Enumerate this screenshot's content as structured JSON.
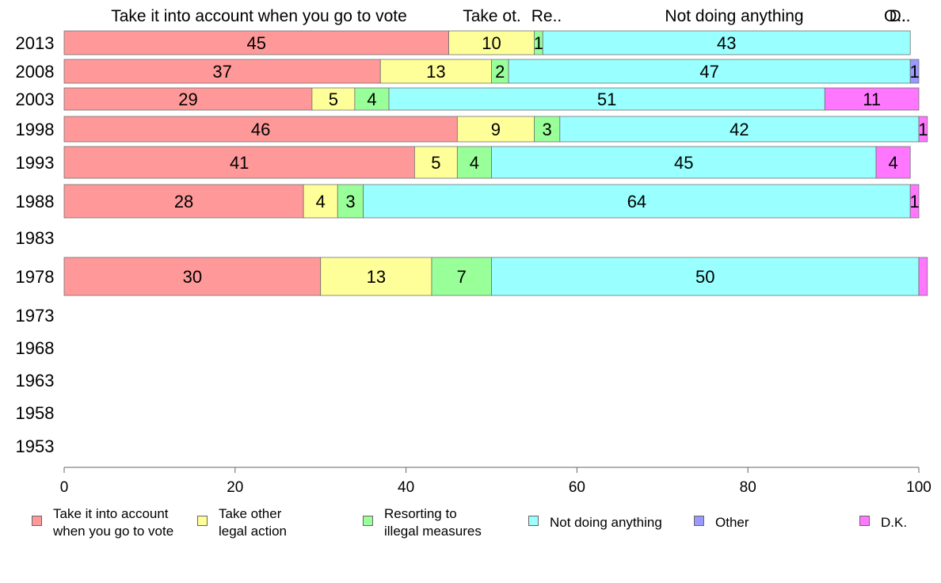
{
  "chart_data": {
    "type": "bar",
    "orientation": "horizontal",
    "stacked": true,
    "title": "",
    "xlabel": "",
    "ylabel": "",
    "xlim": [
      0,
      100
    ],
    "x_ticks": [
      "0",
      "20",
      "40",
      "60",
      "80",
      "100"
    ],
    "categories": [
      "2013",
      "2008",
      "2003",
      "1998",
      "1993",
      "1988",
      "1983",
      "1978",
      "1973",
      "1968",
      "1963",
      "1958",
      "1953"
    ],
    "header_labels": [
      "Take it into account when you go to vote",
      "Take ot.",
      "Re..",
      "Not doing anything",
      "O..",
      "D.."
    ],
    "series": [
      {
        "name": "Take it into account when you go to vote",
        "color": "#ff9999",
        "values": [
          45,
          37,
          29,
          46,
          41,
          28,
          null,
          30,
          null,
          null,
          null,
          null,
          null
        ]
      },
      {
        "name": "Take other legal action",
        "color": "#ffff99",
        "values": [
          10,
          13,
          5,
          9,
          5,
          4,
          null,
          13,
          null,
          null,
          null,
          null,
          null
        ]
      },
      {
        "name": "Resorting to illegal measures",
        "color": "#99ff99",
        "values": [
          1,
          2,
          4,
          3,
          4,
          3,
          null,
          7,
          null,
          null,
          null,
          null,
          null
        ]
      },
      {
        "name": "Not doing anything",
        "color": "#99ffff",
        "values": [
          43,
          47,
          51,
          42,
          45,
          64,
          null,
          50,
          null,
          null,
          null,
          null,
          null
        ]
      },
      {
        "name": "Other",
        "color": "#9999ff",
        "values": [
          0,
          1,
          0,
          0,
          0,
          0,
          null,
          0,
          null,
          null,
          null,
          null,
          null
        ]
      },
      {
        "name": "D.K.",
        "color": "#ff77ff",
        "values": [
          0,
          0,
          11,
          1,
          4,
          1,
          null,
          1,
          null,
          null,
          null,
          null,
          null
        ]
      }
    ],
    "hidden_value_labels": [
      [
        7,
        5
      ]
    ],
    "grid": false,
    "legend_position": "bottom"
  },
  "legend": {
    "items": [
      {
        "label": "Take it into account\nwhen you go to vote",
        "color": "#ff9999"
      },
      {
        "label": "Take other\nlegal action",
        "color": "#ffff99"
      },
      {
        "label": "Resorting to\nillegal measures",
        "color": "#99ff99"
      },
      {
        "label": "Not doing anything",
        "color": "#99ffff"
      },
      {
        "label": "Other",
        "color": "#9999ff"
      },
      {
        "label": "D.K.",
        "color": "#ff77ff"
      }
    ]
  }
}
